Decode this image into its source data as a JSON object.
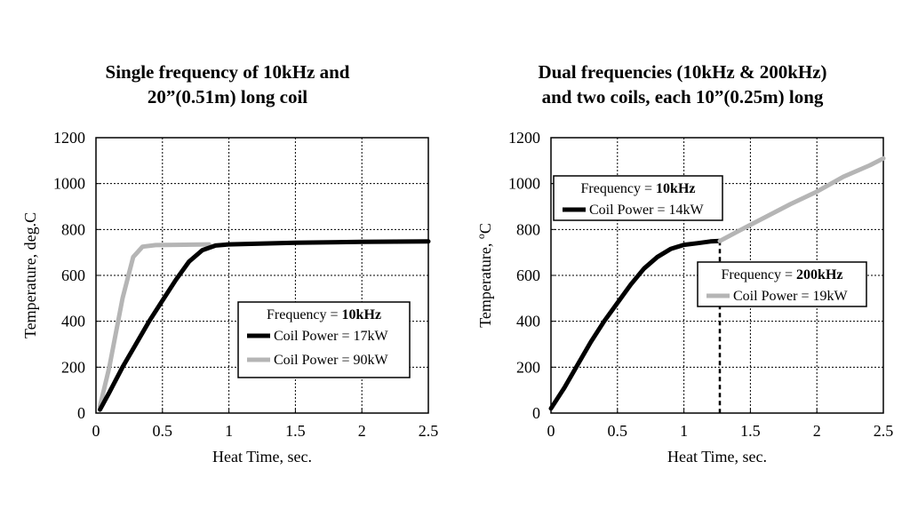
{
  "chart_data": [
    {
      "type": "line",
      "title_lines": [
        "Single frequency of 10kHz and",
        "20”(0.51m) long coil"
      ],
      "xlabel": "Heat Time, sec.",
      "ylabel": "Temperature, deg.C",
      "xlim": [
        0,
        2.5
      ],
      "ylim": [
        0,
        1200
      ],
      "xticks": [
        0,
        0.5,
        1,
        1.5,
        2,
        2.5
      ],
      "xtick_labels": [
        "0",
        "0.5",
        "1",
        "1.5",
        "2",
        "2.5"
      ],
      "yticks": [
        0,
        200,
        400,
        600,
        800,
        1000,
        1200
      ],
      "ytick_labels": [
        "0",
        "200",
        "400",
        "600",
        "800",
        "1000",
        "1200"
      ],
      "grid": true,
      "series": [
        {
          "name": "Coil Power = 90kW",
          "color": "#b5b5b5",
          "x": [
            0.03,
            0.1,
            0.2,
            0.28,
            0.35,
            0.45,
            0.6,
            0.85
          ],
          "y": [
            30,
            200,
            500,
            680,
            725,
            732,
            733,
            735
          ]
        },
        {
          "name": "Coil Power = 17kW",
          "color": "#000000",
          "x": [
            0.03,
            0.1,
            0.2,
            0.3,
            0.4,
            0.5,
            0.6,
            0.7,
            0.8,
            0.9,
            1.0,
            1.5,
            2.0,
            2.5
          ],
          "y": [
            15,
            90,
            200,
            300,
            400,
            490,
            580,
            660,
            710,
            730,
            735,
            742,
            746,
            748
          ]
        }
      ],
      "legend": {
        "position": "right-middle",
        "header_prefix": "Frequency = ",
        "header_bold": "10kHz",
        "entries": [
          {
            "label": "Coil Power = 17kW",
            "color": "#000000"
          },
          {
            "label": "Coil Power = 90kW",
            "color": "#b5b5b5"
          }
        ]
      }
    },
    {
      "type": "line",
      "title_lines": [
        "Dual frequencies (10kHz & 200kHz)",
        "and two coils, each 10”(0.25m) long"
      ],
      "xlabel": "Heat Time, sec.",
      "ylabel_prefix": "Temperature, ",
      "ylabel_sup": "o",
      "ylabel_suffix": "C",
      "xlim": [
        0,
        2.5
      ],
      "ylim": [
        0,
        1200
      ],
      "xticks": [
        0,
        0.5,
        1,
        1.5,
        2,
        2.5
      ],
      "xtick_labels": [
        "0",
        "0.5",
        "1",
        "1.5",
        "2",
        "2.5"
      ],
      "yticks": [
        0,
        200,
        400,
        600,
        800,
        1000,
        1200
      ],
      "ytick_labels": [
        "0",
        "200",
        "400",
        "600",
        "800",
        "1000",
        "1200"
      ],
      "grid": true,
      "switch_time": 1.27,
      "series": [
        {
          "name": "Coil Power = 14kW",
          "color": "#000000",
          "x": [
            0.0,
            0.1,
            0.2,
            0.3,
            0.4,
            0.5,
            0.6,
            0.7,
            0.8,
            0.9,
            1.0,
            1.1,
            1.2,
            1.27
          ],
          "y": [
            20,
            110,
            210,
            310,
            400,
            480,
            560,
            630,
            680,
            715,
            733,
            740,
            748,
            750
          ]
        },
        {
          "name": "Coil Power = 19kW",
          "color": "#b5b5b5",
          "x": [
            1.27,
            1.4,
            1.6,
            1.8,
            2.0,
            2.2,
            2.4,
            2.5
          ],
          "y": [
            750,
            790,
            850,
            910,
            965,
            1030,
            1080,
            1110
          ]
        }
      ],
      "legends": [
        {
          "position": "upper-left",
          "header_prefix": "Frequency = ",
          "header_bold": "10kHz",
          "entries": [
            {
              "label": "Coil Power = 14kW",
              "color": "#000000"
            }
          ]
        },
        {
          "position": "right-middle",
          "header_prefix": "Frequency = ",
          "header_bold": "200kHz",
          "entries": [
            {
              "label": "Coil Power = 19kW",
              "color": "#b5b5b5"
            }
          ]
        }
      ]
    }
  ]
}
